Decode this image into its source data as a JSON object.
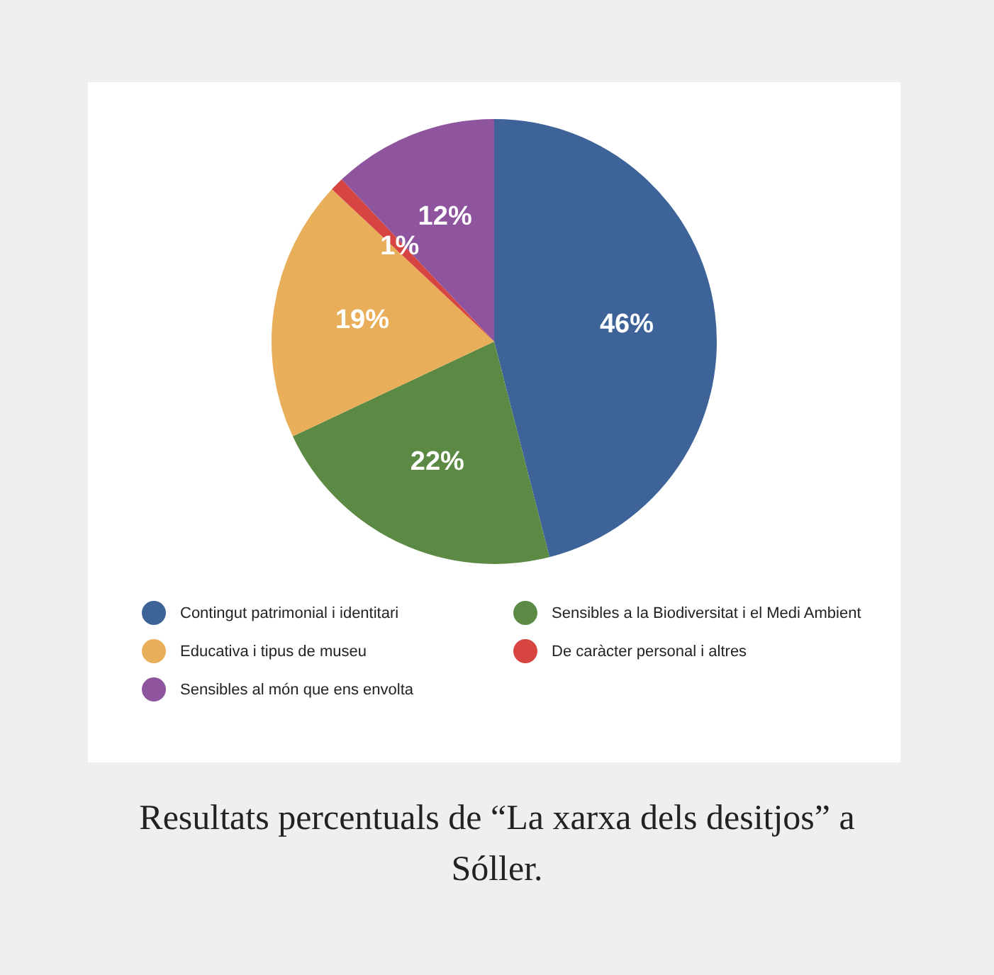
{
  "chart_data": {
    "type": "pie",
    "categories": [
      "Contingut patrimonial i identitari",
      "Sensibles a la Biodiversitat i el Medi Ambient",
      "Educativa i tipus de museu",
      "De caràcter personal i altres",
      "Sensibles al món que ens envolta"
    ],
    "values": [
      46,
      22,
      19,
      1,
      12
    ],
    "colors": [
      "#3d6399",
      "#5c8a45",
      "#e8ae5a",
      "#d64541",
      "#8e559e"
    ],
    "value_labels": [
      "46%",
      "22%",
      "19%",
      "1%",
      "12%"
    ],
    "legend": "bottom",
    "annotations": [
      "Resultats percentuals de “La xarxa dels desitjos” a Sóller."
    ]
  }
}
